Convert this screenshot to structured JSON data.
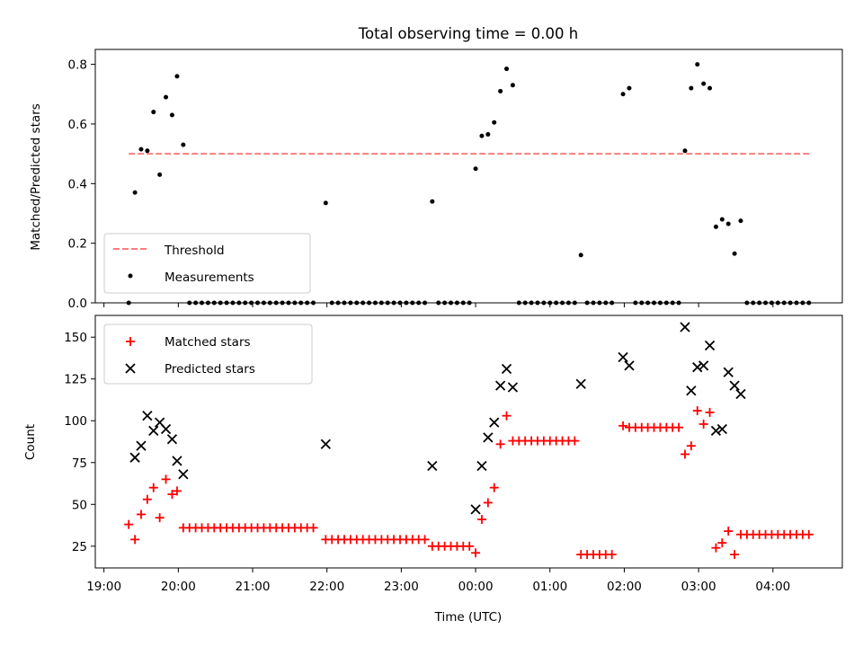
{
  "chart_data": [
    {
      "type": "scatter",
      "title": "Total observing time = 0.00 h",
      "xlabel": "",
      "ylabel": "Matched/Predicted stars",
      "ylim": [
        0,
        0.85
      ],
      "yticks": [
        0.0,
        0.2,
        0.4,
        0.6,
        0.8
      ],
      "ytick_labels": [
        "0.0",
        "0.2",
        "0.4",
        "0.6",
        "0.8"
      ],
      "legend_position": "lower-left",
      "threshold": {
        "name": "Threshold",
        "value": 0.5,
        "x_range": [
          "19:20",
          "04:31"
        ],
        "color": "#f87f7f"
      },
      "series": [
        {
          "name": "Measurements",
          "color": "#000000",
          "points": [
            [
              "19:20",
              0.0
            ],
            [
              "19:25",
              0.37
            ],
            [
              "19:30",
              0.515
            ],
            [
              "19:35",
              0.51
            ],
            [
              "19:40",
              0.64
            ],
            [
              "19:45",
              0.43
            ],
            [
              "19:50",
              0.69
            ],
            [
              "19:55",
              0.63
            ],
            [
              "19:59",
              0.76
            ],
            [
              "20:04",
              0.53
            ],
            [
              "21:59",
              0.335
            ],
            [
              "23:25",
              0.34
            ],
            [
              "00:00",
              0.45
            ],
            [
              "00:05",
              0.56
            ],
            [
              "00:10",
              0.565
            ],
            [
              "00:15",
              0.605
            ],
            [
              "00:20",
              0.71
            ],
            [
              "00:25",
              0.785
            ],
            [
              "00:30",
              0.73
            ],
            [
              "01:25",
              0.16
            ],
            [
              "01:59",
              0.7
            ],
            [
              "02:04",
              0.72
            ],
            [
              "02:49",
              0.51
            ],
            [
              "02:54",
              0.72
            ],
            [
              "02:59",
              0.8
            ],
            [
              "03:04",
              0.735
            ],
            [
              "03:09",
              0.72
            ],
            [
              "03:14",
              0.255
            ],
            [
              "03:19",
              0.28
            ],
            [
              "03:24",
              0.265
            ],
            [
              "03:29",
              0.165
            ],
            [
              "03:34",
              0.275
            ]
          ]
        }
      ]
    },
    {
      "type": "scatter",
      "title": "",
      "xlabel": "Time (UTC)",
      "ylabel": "Count",
      "ylim": [
        12,
        163
      ],
      "xlim": [
        "18:53",
        "04:56"
      ],
      "yticks": [
        25,
        50,
        75,
        100,
        125,
        150
      ],
      "ytick_labels": [
        "25",
        "50",
        "75",
        "100",
        "125",
        "150"
      ],
      "xticks": [
        "19:00",
        "20:00",
        "21:00",
        "22:00",
        "23:00",
        "00:00",
        "01:00",
        "02:00",
        "03:00",
        "04:00"
      ],
      "legend_position": "top-left",
      "series": [
        {
          "name": "Matched stars",
          "marker": "plus",
          "color": "#ff0000",
          "points": [
            [
              "19:20",
              38
            ],
            [
              "19:25",
              29
            ],
            [
              "19:30",
              44
            ],
            [
              "19:35",
              53
            ],
            [
              "19:40",
              60
            ],
            [
              "19:45",
              42
            ],
            [
              "19:50",
              65
            ],
            [
              "19:55",
              56
            ],
            [
              "19:59",
              58
            ],
            [
              "20:04",
              36
            ],
            [
              "21:59",
              29
            ],
            [
              "23:25",
              25
            ],
            [
              "00:00",
              21
            ],
            [
              "00:05",
              41
            ],
            [
              "00:10",
              51
            ],
            [
              "00:15",
              60
            ],
            [
              "00:20",
              86
            ],
            [
              "00:25",
              103
            ],
            [
              "00:30",
              88
            ],
            [
              "01:25",
              20
            ],
            [
              "01:59",
              97
            ],
            [
              "02:49",
              80
            ],
            [
              "02:54",
              85
            ],
            [
              "02:59",
              106
            ],
            [
              "03:04",
              98
            ],
            [
              "03:09",
              105
            ],
            [
              "03:14",
              24
            ],
            [
              "03:19",
              27
            ],
            [
              "03:24",
              34
            ],
            [
              "03:29",
              20
            ],
            [
              "03:34",
              32
            ]
          ],
          "constant_runs": [
            {
              "from": "20:04",
              "to": "21:53",
              "value": 36
            },
            {
              "from": "21:59",
              "to": "23:20",
              "value": 29
            },
            {
              "from": "23:25",
              "to": "23:55",
              "value": 25
            },
            {
              "from": "00:30",
              "to": "01:20",
              "value": 88
            },
            {
              "from": "01:25",
              "to": "01:54",
              "value": 20
            },
            {
              "from": "01:59",
              "to": "02:44",
              "value": 96
            },
            {
              "from": "03:34",
              "to": "04:31",
              "value": 32
            }
          ]
        },
        {
          "name": "Predicted stars",
          "marker": "x",
          "color": "#000000",
          "points": [
            [
              "19:25",
              78
            ],
            [
              "19:30",
              85
            ],
            [
              "19:35",
              103
            ],
            [
              "19:40",
              94
            ],
            [
              "19:45",
              99
            ],
            [
              "19:50",
              95
            ],
            [
              "19:55",
              89
            ],
            [
              "19:59",
              76
            ],
            [
              "20:04",
              68
            ],
            [
              "21:59",
              86
            ],
            [
              "23:25",
              73
            ],
            [
              "00:00",
              47
            ],
            [
              "00:05",
              73
            ],
            [
              "00:10",
              90
            ],
            [
              "00:15",
              99
            ],
            [
              "00:20",
              121
            ],
            [
              "00:25",
              131
            ],
            [
              "00:30",
              120
            ],
            [
              "01:25",
              122
            ],
            [
              "01:59",
              138
            ],
            [
              "02:04",
              133
            ],
            [
              "02:49",
              156
            ],
            [
              "02:54",
              118
            ],
            [
              "02:59",
              132
            ],
            [
              "03:04",
              133
            ],
            [
              "03:09",
              145
            ],
            [
              "03:14",
              94
            ],
            [
              "03:19",
              95
            ],
            [
              "03:24",
              129
            ],
            [
              "03:29",
              121
            ],
            [
              "03:34",
              116
            ]
          ]
        }
      ]
    }
  ]
}
